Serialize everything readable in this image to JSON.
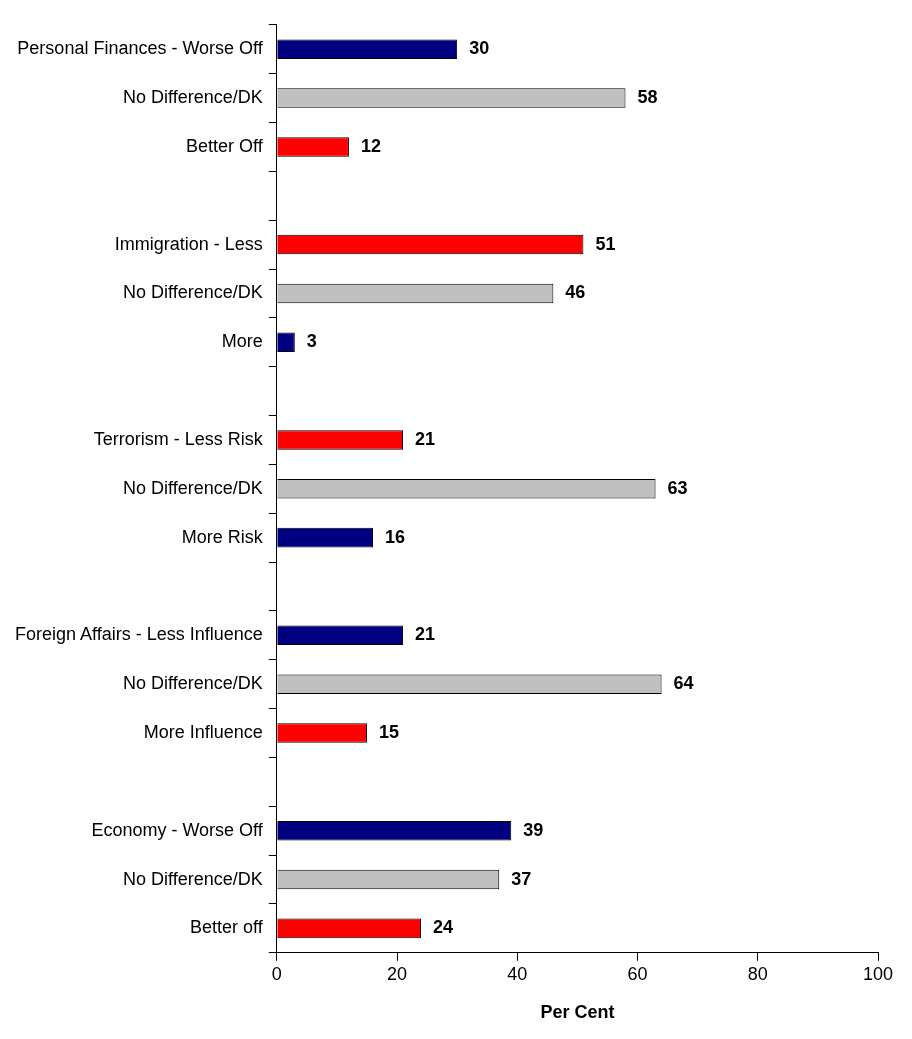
{
  "chart_data": {
    "type": "bar",
    "orientation": "horizontal",
    "xlabel": "Per Cent",
    "categories": [
      "Personal Finances - Worse Off",
      "No Difference/DK",
      "Better Off",
      null,
      "Immigration - Less",
      "No Difference/DK",
      "More",
      null,
      "Terrorism - Less Risk",
      "No Difference/DK",
      "More Risk",
      null,
      "Foreign Affairs - Less Influence",
      "No Difference/DK",
      "More Influence",
      null,
      "Economy - Worse Off",
      "No Difference/DK",
      "Better off"
    ],
    "values": [
      30,
      58,
      12,
      null,
      51,
      46,
      3,
      null,
      21,
      63,
      16,
      null,
      21,
      64,
      15,
      null,
      39,
      37,
      24
    ],
    "colors": [
      "#000080",
      "#c0c0c0",
      "#ff0000",
      null,
      "#ff0000",
      "#c0c0c0",
      "#000080",
      null,
      "#ff0000",
      "#c0c0c0",
      "#000080",
      null,
      "#000080",
      "#c0c0c0",
      "#ff0000",
      null,
      "#000080",
      "#c0c0c0",
      "#ff0000"
    ],
    "xlim": [
      0,
      100
    ],
    "xticks": [
      0,
      20,
      40,
      60,
      80,
      100
    ],
    "data_labels": true,
    "legend": false
  }
}
